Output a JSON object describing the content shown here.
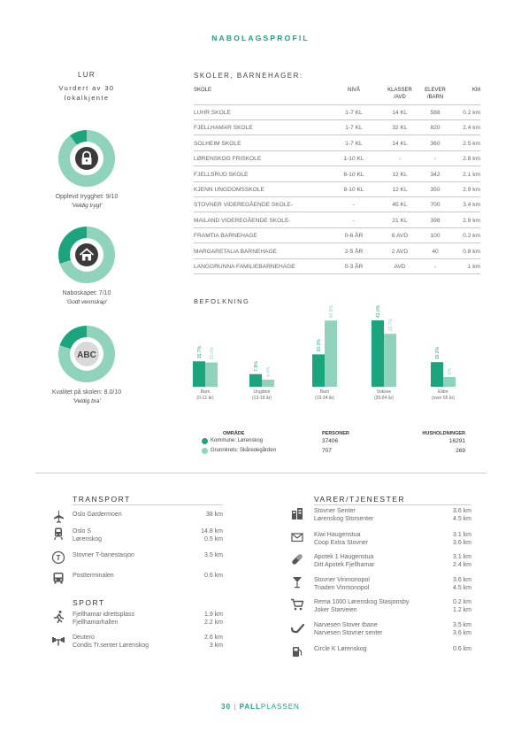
{
  "page_title": "NABOLAGSPROFIL",
  "area_name": "LUR",
  "rated_by": "Vurdert av 30 lokalkjente",
  "ratings": [
    {
      "label": "Opplevd trygghet: 9/10",
      "sub": "'Veldig trygt'",
      "icon": "lock-icon",
      "value": 0.9
    },
    {
      "label": "Naboskapet: 7/10",
      "sub": "'Godt vennskap'",
      "icon": "house-icon",
      "value": 0.7
    },
    {
      "label": "Kvalitet på skolen: 8.0/10",
      "sub": "'Veldig bra'",
      "icon": "abc-icon",
      "value": 0.8
    }
  ],
  "schools": {
    "heading": "SKOLER, BARNEHAGER:",
    "headers": {
      "name": "SKOLE",
      "niva": "NIVÅ",
      "klasser_1": "KLASSER",
      "klasser_2": "/AVD",
      "elever_1": "ELEVER",
      "elever_2": "/BARN",
      "km": "KM"
    },
    "rows": [
      {
        "name": "LUHR SKOLE",
        "niva": "1-7 KL",
        "klasser": "14 KL",
        "elever": "588",
        "km": "0.2 km"
      },
      {
        "name": "FJELLHAMAR SKOLE",
        "niva": "1-7 KL",
        "klasser": "32 KL",
        "elever": "820",
        "km": "2.4 km"
      },
      {
        "name": "SOLHEIM SKOLE",
        "niva": "1-7 KL",
        "klasser": "14 KL",
        "elever": "360",
        "km": "2.5 km"
      },
      {
        "name": "LØRENSKOG FRISKOLE",
        "niva": "1-10 KL",
        "klasser": "-",
        "elever": "-",
        "km": "2.8 km"
      },
      {
        "name": "FJELLSRUD SKOLE",
        "niva": "8-10 KL",
        "klasser": "12 KL",
        "elever": "342",
        "km": "2.1 km"
      },
      {
        "name": "KJENN UNGDOMSSKOLE",
        "niva": "8-10 KL",
        "klasser": "12 KL",
        "elever": "350",
        "km": "2.9 km"
      },
      {
        "name": "STOVNER VIDEREGÅENDE SKOLE-",
        "niva": "-",
        "klasser": "45 KL",
        "elever": "700",
        "km": "3.4 km"
      },
      {
        "name": "MAILAND VIDEREGÅENDE SKOLE-",
        "niva": "-",
        "klasser": "21 KL",
        "elever": "398",
        "km": "2.9 km"
      },
      {
        "name": "FRAMTIA BARNEHAGE",
        "niva": "0-6 ÅR",
        "klasser": "6 AVD",
        "elever": "100",
        "km": "0.2 km"
      },
      {
        "name": "MARGARETALIA BARNEHAGE",
        "niva": "2-5 ÅR",
        "klasser": "2 AVD",
        "elever": "40",
        "km": "0.8 km"
      },
      {
        "name": "LANGGRUNNA FAMILIEBARNEHAGE",
        "niva": "0-3 ÅR",
        "klasser": "AVD",
        "elever": "-",
        "km": "1 km"
      }
    ]
  },
  "population": {
    "heading": "BEFOLKNING",
    "legend_header": {
      "area": "OMRÅDE",
      "persons": "PERSONER",
      "households": "HUSHOLDNINGER"
    },
    "legend": [
      {
        "name": "Kommune: Lørenskog",
        "persons": "37406",
        "households": "16291",
        "color": "#1aa57f"
      },
      {
        "name": "Grunnkrets: Skåredegården",
        "persons": "707",
        "households": "269",
        "color": "#8fd3bc"
      }
    ]
  },
  "chart_data": {
    "type": "bar",
    "categories": [
      "Barn",
      "Ungdom",
      "Barn",
      "Voksne",
      "Eldre"
    ],
    "category_sublabels": [
      "(0-12 år)",
      "(13-18 år)",
      "(19-34 år)",
      "(35-64 år)",
      "(over 65 år)"
    ],
    "series": [
      {
        "name": "Kommune: Lørenskog",
        "values": [
          15.7,
          7.8,
          20.0,
          41.0,
          15.2
        ],
        "labels": [
          "15.7%",
          "7.8%",
          "20.0%",
          "41.0%",
          "15.2%"
        ],
        "color": "#1aa57f"
      },
      {
        "name": "Grunnkrets: Skåredegården",
        "values": [
          15.0,
          4.4,
          40.9,
          32.7,
          6.0
        ],
        "labels": [
          "15.0%",
          "4.4%",
          "40.9%",
          "32.7%",
          "6%"
        ],
        "color": "#8fd3bc"
      }
    ],
    "ylim": [
      0,
      42
    ]
  },
  "transport": {
    "heading": "TRANSPORT",
    "items": [
      {
        "icon": "airplane-icon",
        "names": [
          "Oslo Gardermoen"
        ],
        "dists": [
          "38 km"
        ]
      },
      {
        "icon": "train-icon",
        "names": [
          "Oslo S",
          "Lørenskog"
        ],
        "dists": [
          "14.8 km",
          "0.5 km"
        ]
      },
      {
        "icon": "metro-icon",
        "names": [
          "Stovner T-banestasjon"
        ],
        "dists": [
          "3.5 km"
        ]
      },
      {
        "icon": "bus-icon",
        "names": [
          "Postterminalen"
        ],
        "dists": [
          "0.6 km"
        ]
      }
    ]
  },
  "sport": {
    "heading": "SPORT",
    "items": [
      {
        "icon": "running-icon",
        "names": [
          "Fjellhamar idrettsplass",
          "Fjellhamarhallen"
        ],
        "dists": [
          "1.9 km",
          "2.2 km"
        ]
      },
      {
        "icon": "gym-icon",
        "names": [
          "Deutero",
          "Condis Tr.senter Lørenskog"
        ],
        "dists": [
          "2.6 km",
          "3 km"
        ]
      }
    ]
  },
  "services": {
    "heading": "VARER/TJENESTER",
    "items": [
      {
        "icon": "shopping-center-icon",
        "names": [
          "Stovner Senter",
          "Lørenskog Storsenter"
        ],
        "dists": [
          "3.6 km",
          "4.5 km"
        ]
      },
      {
        "icon": "mail-icon",
        "names": [
          "Kiwi Haugenstua",
          "Coop Extra Stovner"
        ],
        "dists": [
          "3.1 km",
          "3.6 km"
        ]
      },
      {
        "icon": "pharmacy-icon",
        "names": [
          "Apotek 1 Haugenstua",
          "Ditt Apotek Fjellhamar"
        ],
        "dists": [
          "3.1 km",
          "2.4 km"
        ]
      },
      {
        "icon": "wine-icon",
        "names": [
          "Stovner Vinmonopol",
          "Triaden Vinmonopol"
        ],
        "dists": [
          "3.6 km",
          "4.5 km"
        ]
      },
      {
        "icon": "cart-icon",
        "names": [
          "Rema 1000 Lørenskog Stasjonsby",
          "Joker Starveien"
        ],
        "dists": [
          "0.2 km",
          "1.2 km"
        ]
      },
      {
        "icon": "pipe-icon",
        "names": [
          "Narvesen Stover tbane",
          "Narvesen Stovner senter"
        ],
        "dists": [
          "3.5 km",
          "3.6 km"
        ]
      },
      {
        "icon": "fuel-icon",
        "names": [
          "Circle K Lørenskog"
        ],
        "dists": [
          "0.6 km"
        ]
      }
    ]
  },
  "footer": {
    "page": "30",
    "sep": "|",
    "brand_a": "PALL",
    "brand_b": "PLASSEN"
  },
  "colors": {
    "accent": "#1aa57f",
    "light": "#8fd3bc",
    "text": "#555555"
  }
}
